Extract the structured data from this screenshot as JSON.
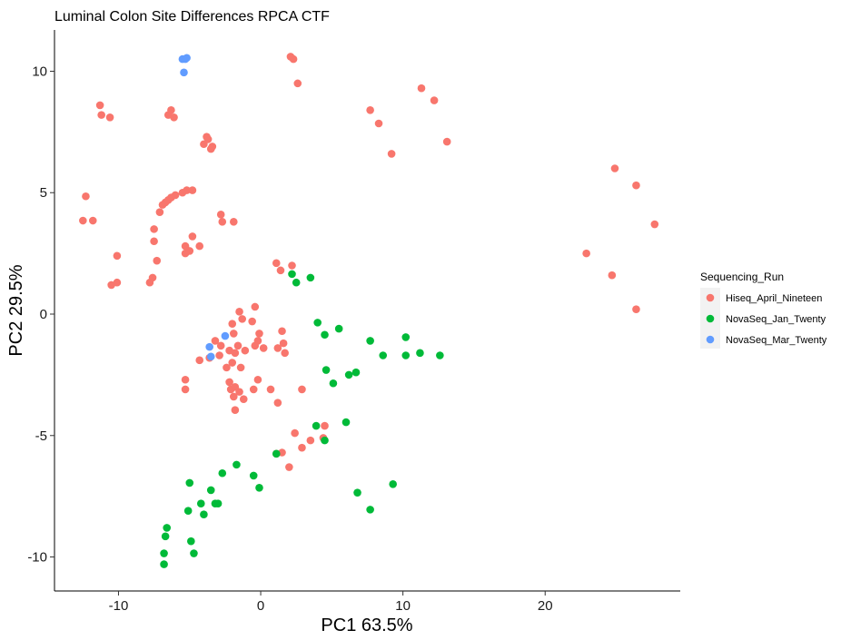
{
  "chart_data": {
    "type": "scatter",
    "title": "Luminal Colon Site Differences RPCA CTF",
    "xlabel": "PC1 63.5%",
    "ylabel": "PC2 29.5%",
    "xlim": [
      -14.5,
      29.5
    ],
    "ylim": [
      -11.4,
      11.7
    ],
    "x_ticks": [
      -10,
      0,
      10,
      20
    ],
    "y_ticks": [
      -10,
      -5,
      0,
      5,
      10
    ],
    "x_tick_labels": [
      "-10",
      "0",
      "10",
      "20"
    ],
    "y_tick_labels": [
      "-10",
      "-5",
      "0",
      "5",
      "10"
    ],
    "grid": false,
    "legend": {
      "title": "Sequencing_Run",
      "position": "right"
    },
    "series": [
      {
        "name": "Hiseq_April_Nineteen",
        "color": "#F8766D",
        "points": [
          [
            -12.3,
            4.85
          ],
          [
            -12.5,
            3.85
          ],
          [
            -11.8,
            3.85
          ],
          [
            -11.3,
            8.6
          ],
          [
            -11.2,
            8.2
          ],
          [
            -10.6,
            8.1
          ],
          [
            -10.1,
            2.4
          ],
          [
            -10.5,
            1.2
          ],
          [
            -10.1,
            1.3
          ],
          [
            -7.8,
            1.3
          ],
          [
            -7.6,
            1.5
          ],
          [
            -7.3,
            2.2
          ],
          [
            -7.5,
            3.5
          ],
          [
            -7.5,
            3.0
          ],
          [
            -7.1,
            4.2
          ],
          [
            -6.9,
            4.5
          ],
          [
            -6.7,
            4.6
          ],
          [
            -6.5,
            4.7
          ],
          [
            -6.3,
            4.8
          ],
          [
            -6.0,
            4.9
          ],
          [
            -6.5,
            8.2
          ],
          [
            -6.3,
            8.4
          ],
          [
            -6.1,
            8.1
          ],
          [
            -5.5,
            5.0
          ],
          [
            -5.2,
            5.1
          ],
          [
            -4.8,
            5.1
          ],
          [
            -5.3,
            2.5
          ],
          [
            -5.3,
            2.8
          ],
          [
            -5.0,
            2.6
          ],
          [
            -4.8,
            3.2
          ],
          [
            -4.3,
            2.8
          ],
          [
            -3.8,
            7.3
          ],
          [
            -3.7,
            7.2
          ],
          [
            -4.0,
            7.0
          ],
          [
            -3.4,
            6.9
          ],
          [
            -3.5,
            6.8
          ],
          [
            -2.8,
            4.1
          ],
          [
            -2.7,
            3.8
          ],
          [
            -1.9,
            3.8
          ],
          [
            2.1,
            10.6
          ],
          [
            2.3,
            10.5
          ],
          [
            2.6,
            9.5
          ],
          [
            7.7,
            8.4
          ],
          [
            8.3,
            7.85
          ],
          [
            9.2,
            6.6
          ],
          [
            11.3,
            9.3
          ],
          [
            12.2,
            8.8
          ],
          [
            13.1,
            7.1
          ],
          [
            22.9,
            2.5
          ],
          [
            24.7,
            1.6
          ],
          [
            24.9,
            6.0
          ],
          [
            26.4,
            5.3
          ],
          [
            26.4,
            0.2
          ],
          [
            27.7,
            3.7
          ],
          [
            1.1,
            2.1
          ],
          [
            1.4,
            1.8
          ],
          [
            2.2,
            2.0
          ],
          [
            -0.4,
            0.3
          ],
          [
            -1.5,
            0.1
          ],
          [
            -1.3,
            -0.2
          ],
          [
            -2.0,
            -0.4
          ],
          [
            -0.6,
            -0.3
          ],
          [
            -1.9,
            -0.8
          ],
          [
            -0.1,
            -0.8
          ],
          [
            -0.2,
            -1.1
          ],
          [
            -1.6,
            -1.3
          ],
          [
            -0.4,
            -1.3
          ],
          [
            0.2,
            -1.4
          ],
          [
            -3.2,
            -1.1
          ],
          [
            -2.8,
            -1.3
          ],
          [
            -2.2,
            -1.5
          ],
          [
            -1.8,
            -1.6
          ],
          [
            -4.3,
            -1.9
          ],
          [
            -3.6,
            -1.8
          ],
          [
            -2.9,
            -1.7
          ],
          [
            -1.1,
            -1.5
          ],
          [
            1.5,
            -0.7
          ],
          [
            1.6,
            -1.2
          ],
          [
            1.2,
            -1.4
          ],
          [
            1.7,
            -1.6
          ],
          [
            -2.4,
            -2.2
          ],
          [
            -2.0,
            -2.0
          ],
          [
            -1.4,
            -2.2
          ],
          [
            -0.2,
            -2.7
          ],
          [
            -5.3,
            -2.7
          ],
          [
            -5.3,
            -3.1
          ],
          [
            -2.2,
            -2.8
          ],
          [
            -2.1,
            -3.1
          ],
          [
            -1.8,
            -3.0
          ],
          [
            -1.5,
            -3.2
          ],
          [
            -1.9,
            -3.4
          ],
          [
            -1.2,
            -3.5
          ],
          [
            -1.8,
            -3.95
          ],
          [
            -0.5,
            -3.1
          ],
          [
            0.7,
            -3.1
          ],
          [
            1.2,
            -3.65
          ],
          [
            2.9,
            -3.1
          ],
          [
            2.4,
            -4.9
          ],
          [
            2.9,
            -5.5
          ],
          [
            3.5,
            -5.2
          ],
          [
            4.4,
            -5.1
          ],
          [
            4.5,
            -4.6
          ],
          [
            1.1,
            -5.75
          ],
          [
            1.5,
            -5.7
          ],
          [
            2.0,
            -6.3
          ]
        ]
      },
      {
        "name": "NovaSeq_Jan_Twenty",
        "color": "#00BA38",
        "points": [
          [
            2.2,
            1.65
          ],
          [
            2.5,
            1.3
          ],
          [
            3.5,
            1.5
          ],
          [
            4.0,
            -0.35
          ],
          [
            4.5,
            -0.85
          ],
          [
            5.5,
            -0.6
          ],
          [
            7.7,
            -1.1
          ],
          [
            8.6,
            -1.7
          ],
          [
            10.2,
            -0.95
          ],
          [
            10.2,
            -1.7
          ],
          [
            11.2,
            -1.6
          ],
          [
            12.6,
            -1.7
          ],
          [
            4.6,
            -2.3
          ],
          [
            5.1,
            -2.85
          ],
          [
            6.2,
            -2.5
          ],
          [
            6.7,
            -2.4
          ],
          [
            3.9,
            -4.6
          ],
          [
            6.0,
            -4.45
          ],
          [
            4.5,
            -5.2
          ],
          [
            1.1,
            -5.75
          ],
          [
            -0.5,
            -6.65
          ],
          [
            -1.7,
            -6.2
          ],
          [
            -2.7,
            -6.55
          ],
          [
            -0.1,
            -7.15
          ],
          [
            -3.5,
            -7.25
          ],
          [
            -3.2,
            -7.8
          ],
          [
            -4.2,
            -7.8
          ],
          [
            -3.0,
            -7.8
          ],
          [
            -5.0,
            -6.95
          ],
          [
            -5.1,
            -8.1
          ],
          [
            -4.0,
            -8.25
          ],
          [
            -6.6,
            -8.8
          ],
          [
            -6.7,
            -9.15
          ],
          [
            -4.9,
            -9.35
          ],
          [
            -6.8,
            -9.85
          ],
          [
            -4.7,
            -9.85
          ],
          [
            -6.8,
            -10.3
          ],
          [
            6.8,
            -7.35
          ],
          [
            7.7,
            -8.05
          ],
          [
            9.3,
            -7.0
          ]
        ]
      },
      {
        "name": "NovaSeq_Mar_Twenty",
        "color": "#619CFF",
        "points": [
          [
            -5.5,
            10.5
          ],
          [
            -5.3,
            10.5
          ],
          [
            -5.2,
            10.55
          ],
          [
            -5.4,
            9.95
          ],
          [
            -2.5,
            -0.9
          ],
          [
            -3.6,
            -1.35
          ],
          [
            -3.5,
            -1.75
          ]
        ]
      }
    ]
  }
}
